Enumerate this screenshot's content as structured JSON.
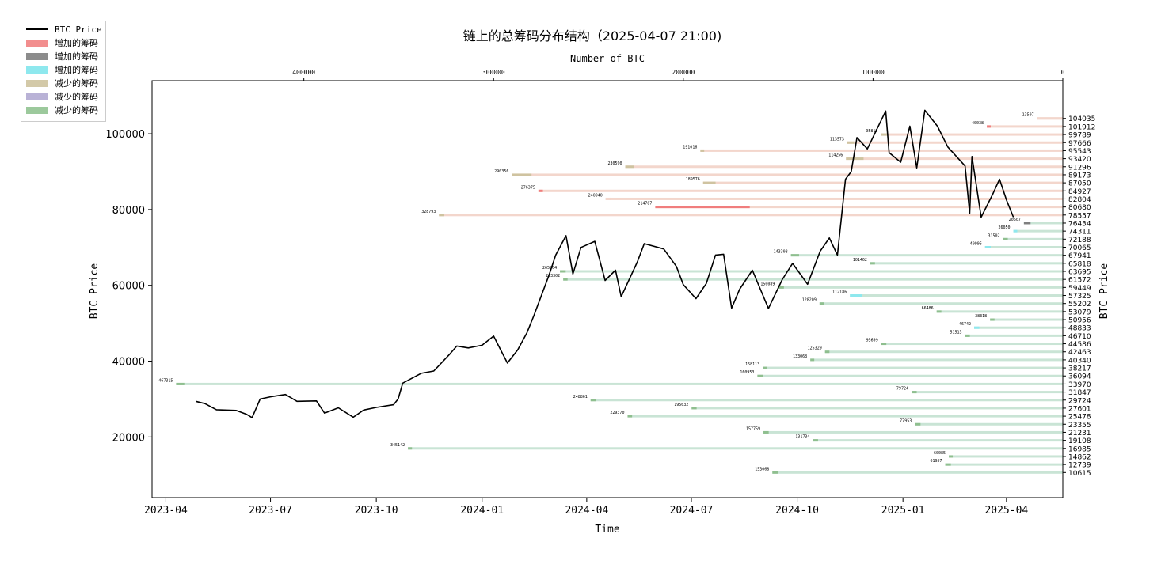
{
  "chart_data": {
    "type": "line",
    "title": "链上的总筹码分布结构（2025-04-07 21:00)",
    "xlabel": "Time",
    "ylabel": "BTC Price",
    "ylabel_right": "BTC Price",
    "top_xlabel": "Number of BTC",
    "ylim": [
      4000,
      114000
    ],
    "xlim": [
      "2023-03-20",
      "2025-05-20"
    ],
    "y_ticks": [
      20000,
      40000,
      60000,
      80000,
      100000
    ],
    "x_ticks": [
      "2023-04",
      "2023-07",
      "2023-10",
      "2024-01",
      "2024-04",
      "2024-07",
      "2024-10",
      "2025-01",
      "2025-04"
    ],
    "top_ticks": [
      400000,
      300000,
      200000,
      100000,
      0
    ],
    "top_xlim": [
      480000,
      0
    ],
    "right_ticks": [
      104035,
      101912,
      99789,
      97666,
      95543,
      93420,
      91296,
      89173,
      87050,
      84927,
      82804,
      80680,
      78557,
      76434,
      74311,
      72188,
      70065,
      67941,
      65818,
      63695,
      61572,
      59449,
      57325,
      55202,
      53079,
      50956,
      48833,
      46710,
      44586,
      42463,
      40340,
      38217,
      36094,
      33970,
      31847,
      29724,
      27601,
      25478,
      23355,
      21231,
      19108,
      16985,
      14862,
      12739,
      10615
    ],
    "legend": [
      {
        "label": "BTC Price",
        "kind": "line",
        "color": "#000000"
      },
      {
        "label": "增加的筹码",
        "kind": "patch",
        "color": "#f28e8e"
      },
      {
        "label": "增加的筹码",
        "kind": "patch",
        "color": "#8c8c8c"
      },
      {
        "label": "增加的筹码",
        "kind": "patch",
        "color": "#8ee8ee"
      },
      {
        "label": "减少的筹码",
        "kind": "patch",
        "color": "#d3c9a8"
      },
      {
        "label": "减少的筹码",
        "kind": "patch",
        "color": "#b9b2d6"
      },
      {
        "label": "减少的筹码",
        "kind": "patch",
        "color": "#9cc99c"
      }
    ],
    "colors": {
      "above_bar": "#f3d6cc",
      "below_bar": "#c9e4d5",
      "added": "#f07d7d",
      "reduced": "#8fbf8f",
      "cyan": "#8ee8ee",
      "tan": "#cfc3a0",
      "gray": "#7f7f7f"
    },
    "series": [
      {
        "name": "BTC Price",
        "points": [
          [
            "2023-04-27",
            29400
          ],
          [
            "2023-05-05",
            28800
          ],
          [
            "2023-05-15",
            27200
          ],
          [
            "2023-06-01",
            27000
          ],
          [
            "2023-06-10",
            26000
          ],
          [
            "2023-06-15",
            25100
          ],
          [
            "2023-06-22",
            30000
          ],
          [
            "2023-07-01",
            30600
          ],
          [
            "2023-07-14",
            31200
          ],
          [
            "2023-07-24",
            29400
          ],
          [
            "2023-08-10",
            29500
          ],
          [
            "2023-08-17",
            26300
          ],
          [
            "2023-08-29",
            27700
          ],
          [
            "2023-09-11",
            25200
          ],
          [
            "2023-09-20",
            27100
          ],
          [
            "2023-10-01",
            27800
          ],
          [
            "2023-10-16",
            28500
          ],
          [
            "2023-10-20",
            30000
          ],
          [
            "2023-10-24",
            34200
          ],
          [
            "2023-11-09",
            36800
          ],
          [
            "2023-11-20",
            37400
          ],
          [
            "2023-12-04",
            41900
          ],
          [
            "2023-12-10",
            44000
          ],
          [
            "2023-12-20",
            43500
          ],
          [
            "2024-01-01",
            44200
          ],
          [
            "2024-01-11",
            46600
          ],
          [
            "2024-01-23",
            39500
          ],
          [
            "2024-02-01",
            43000
          ],
          [
            "2024-02-09",
            47500
          ],
          [
            "2024-02-15",
            52000
          ],
          [
            "2024-02-28",
            62500
          ],
          [
            "2024-03-05",
            68000
          ],
          [
            "2024-03-14",
            73100
          ],
          [
            "2024-03-20",
            63000
          ],
          [
            "2024-03-27",
            70000
          ],
          [
            "2024-04-08",
            71600
          ],
          [
            "2024-04-17",
            61300
          ],
          [
            "2024-04-26",
            64000
          ],
          [
            "2024-05-01",
            57000
          ],
          [
            "2024-05-15",
            66200
          ],
          [
            "2024-05-21",
            71000
          ],
          [
            "2024-06-07",
            69600
          ],
          [
            "2024-06-18",
            65000
          ],
          [
            "2024-06-24",
            60200
          ],
          [
            "2024-07-05",
            56500
          ],
          [
            "2024-07-14",
            60500
          ],
          [
            "2024-07-22",
            68000
          ],
          [
            "2024-07-29",
            68200
          ],
          [
            "2024-08-05",
            54000
          ],
          [
            "2024-08-12",
            59000
          ],
          [
            "2024-08-23",
            64000
          ],
          [
            "2024-09-06",
            53900
          ],
          [
            "2024-09-18",
            61500
          ],
          [
            "2024-09-27",
            65800
          ],
          [
            "2024-10-10",
            60300
          ],
          [
            "2024-10-21",
            69000
          ],
          [
            "2024-10-29",
            72500
          ],
          [
            "2024-11-05",
            68000
          ],
          [
            "2024-11-12",
            88000
          ],
          [
            "2024-11-17",
            90000
          ],
          [
            "2024-11-22",
            99000
          ],
          [
            "2024-12-01",
            96000
          ],
          [
            "2024-12-17",
            106000
          ],
          [
            "2024-12-20",
            95000
          ],
          [
            "2024-12-30",
            92500
          ],
          [
            "2025-01-07",
            102000
          ],
          [
            "2025-01-13",
            91000
          ],
          [
            "2025-01-20",
            106200
          ],
          [
            "2025-01-31",
            102000
          ],
          [
            "2025-02-09",
            96500
          ],
          [
            "2025-02-24",
            91500
          ],
          [
            "2025-02-28",
            79000
          ],
          [
            "2025-03-02",
            94000
          ],
          [
            "2025-03-10",
            78000
          ],
          [
            "2025-03-20",
            84000
          ],
          [
            "2025-03-26",
            88000
          ],
          [
            "2025-04-01",
            82500
          ],
          [
            "2025-04-07",
            78000
          ]
        ]
      }
    ],
    "chip_bars": [
      {
        "price": 104035,
        "label": "13507",
        "side": "above",
        "marks": [
          [
            13507,
            0,
            "#f3d6cc"
          ]
        ]
      },
      {
        "price": 101912,
        "label": "40038",
        "side": "above",
        "marks": [
          [
            40038,
            38000,
            "#f07d7d"
          ]
        ]
      },
      {
        "price": 99789,
        "label": "95819",
        "side": "above",
        "marks": [
          [
            95819,
            92000,
            "#cfc3a0"
          ]
        ]
      },
      {
        "price": 97666,
        "label": "113573",
        "side": "above",
        "marks": [
          [
            113573,
            110000,
            "#cfc3a0"
          ]
        ]
      },
      {
        "price": 95543,
        "label": "191016",
        "side": "above",
        "marks": [
          [
            191016,
            189000,
            "#cfc3a0"
          ]
        ]
      },
      {
        "price": 93420,
        "label": "114256",
        "side": "above",
        "marks": [
          [
            114256,
            105000,
            "#cfc3a0"
          ]
        ]
      },
      {
        "price": 91296,
        "label": "230590",
        "side": "above",
        "marks": [
          [
            230590,
            226000,
            "#cfc3a0"
          ]
        ]
      },
      {
        "price": 89173,
        "label": "290356",
        "side": "above",
        "marks": [
          [
            290356,
            280000,
            "#cfc3a0"
          ]
        ]
      },
      {
        "price": 87050,
        "label": "189576",
        "side": "above",
        "marks": [
          [
            189576,
            183000,
            "#cfc3a0"
          ]
        ]
      },
      {
        "price": 84927,
        "label": "276375",
        "side": "above",
        "marks": [
          [
            276375,
            274000,
            "#f07d7d"
          ]
        ]
      },
      {
        "price": 82804,
        "label": "240940",
        "side": "above",
        "marks": [
          [
            240940,
            238000,
            "#f3d6cc"
          ]
        ]
      },
      {
        "price": 80680,
        "label": "214787",
        "side": "above",
        "marks": [
          [
            214787,
            165000,
            "#f07d7d"
          ]
        ]
      },
      {
        "price": 78557,
        "label": "328793",
        "side": "above",
        "marks": [
          [
            328793,
            326000,
            "#cfc3a0"
          ]
        ]
      },
      {
        "price": 76434,
        "label": "20507",
        "side": "below",
        "marks": [
          [
            20507,
            17000,
            "#7f7f7f"
          ]
        ]
      },
      {
        "price": 74311,
        "label": "26050",
        "side": "below",
        "marks": [
          [
            26050,
            24000,
            "#8ee8ee"
          ]
        ]
      },
      {
        "price": 72188,
        "label": "31502",
        "side": "below",
        "marks": [
          [
            31502,
            29000,
            "#8fbf8f"
          ]
        ]
      },
      {
        "price": 70065,
        "label": "40996",
        "side": "below",
        "marks": [
          [
            40996,
            38000,
            "#8ee8ee"
          ]
        ]
      },
      {
        "price": 67941,
        "label": "143308",
        "side": "below",
        "marks": [
          [
            143308,
            139000,
            "#8fbf8f"
          ]
        ]
      },
      {
        "price": 65818,
        "label": "101462",
        "side": "below",
        "marks": [
          [
            101462,
            99000,
            "#8fbf8f"
          ]
        ]
      },
      {
        "price": 63695,
        "label": "265004",
        "side": "below",
        "marks": [
          [
            265004,
            262000,
            "#8fbf8f"
          ]
        ]
      },
      {
        "price": 61572,
        "label": "263302",
        "side": "below",
        "marks": [
          [
            263302,
            261000,
            "#8fbf8f"
          ]
        ]
      },
      {
        "price": 59449,
        "label": "150089",
        "side": "below",
        "marks": [
          [
            150089,
            147000,
            "#8fbf8f"
          ]
        ]
      },
      {
        "price": 57325,
        "label": "112186",
        "side": "below",
        "marks": [
          [
            112186,
            106000,
            "#8ee8ee"
          ]
        ]
      },
      {
        "price": 55202,
        "label": "128209",
        "side": "below",
        "marks": [
          [
            128209,
            126000,
            "#8fbf8f"
          ]
        ]
      },
      {
        "price": 53079,
        "label": "66486",
        "side": "below",
        "marks": [
          [
            66486,
            64000,
            "#8fbf8f"
          ]
        ]
      },
      {
        "price": 50956,
        "label": "38318",
        "side": "below",
        "marks": [
          [
            38318,
            36000,
            "#8fbf8f"
          ]
        ]
      },
      {
        "price": 48833,
        "label": "46742",
        "side": "below",
        "marks": [
          [
            46742,
            44000,
            "#8ee8ee"
          ]
        ]
      },
      {
        "price": 46710,
        "label": "51513",
        "side": "below",
        "marks": [
          [
            51513,
            49000,
            "#8fbf8f"
          ]
        ]
      },
      {
        "price": 44586,
        "label": "95699",
        "side": "below",
        "marks": [
          [
            95699,
            93000,
            "#8fbf8f"
          ]
        ]
      },
      {
        "price": 42463,
        "label": "125329",
        "side": "below",
        "marks": [
          [
            125329,
            123000,
            "#8fbf8f"
          ]
        ]
      },
      {
        "price": 40340,
        "label": "133068",
        "side": "below",
        "marks": [
          [
            133068,
            131000,
            "#8fbf8f"
          ]
        ]
      },
      {
        "price": 38217,
        "label": "158113",
        "side": "below",
        "marks": [
          [
            158113,
            156000,
            "#8fbf8f"
          ]
        ]
      },
      {
        "price": 36094,
        "label": "160953",
        "side": "below",
        "marks": [
          [
            160953,
            158000,
            "#8fbf8f"
          ]
        ]
      },
      {
        "price": 33970,
        "label": "467315",
        "side": "below",
        "marks": [
          [
            467315,
            463000,
            "#8fbf8f"
          ]
        ]
      },
      {
        "price": 31847,
        "label": "79724",
        "side": "below",
        "marks": [
          [
            79724,
            77000,
            "#8fbf8f"
          ]
        ]
      },
      {
        "price": 29724,
        "label": "248861",
        "side": "below",
        "marks": [
          [
            248861,
            246000,
            "#8fbf8f"
          ]
        ]
      },
      {
        "price": 27601,
        "label": "195632",
        "side": "below",
        "marks": [
          [
            195632,
            193000,
            "#8fbf8f"
          ]
        ]
      },
      {
        "price": 25478,
        "label": "229370",
        "side": "below",
        "marks": [
          [
            229370,
            227000,
            "#8fbf8f"
          ]
        ]
      },
      {
        "price": 23355,
        "label": "77953",
        "side": "below",
        "marks": [
          [
            77953,
            75000,
            "#8fbf8f"
          ]
        ]
      },
      {
        "price": 21231,
        "label": "157759",
        "side": "below",
        "marks": [
          [
            157759,
            155000,
            "#8fbf8f"
          ]
        ]
      },
      {
        "price": 19108,
        "label": "131734",
        "side": "below",
        "marks": [
          [
            131734,
            129000,
            "#8fbf8f"
          ]
        ]
      },
      {
        "price": 16985,
        "label": "345142",
        "side": "below",
        "marks": [
          [
            345142,
            343000,
            "#8fbf8f"
          ]
        ]
      },
      {
        "price": 14862,
        "label": "60085",
        "side": "below",
        "marks": [
          [
            60085,
            58000,
            "#8fbf8f"
          ]
        ]
      },
      {
        "price": 12739,
        "label": "61957",
        "side": "below",
        "marks": [
          [
            61957,
            59000,
            "#8fbf8f"
          ]
        ]
      },
      {
        "price": 10615,
        "label": "153068",
        "side": "below",
        "marks": [
          [
            153068,
            150000,
            "#8fbf8f"
          ]
        ]
      }
    ]
  }
}
